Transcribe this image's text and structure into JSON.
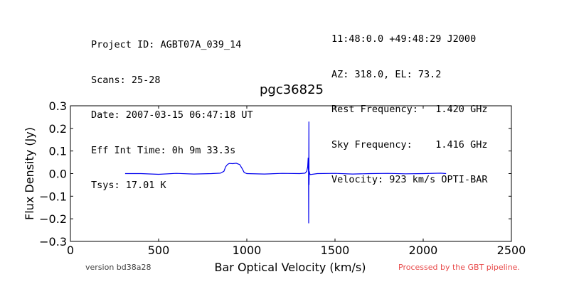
{
  "header": {
    "left": [
      "Project ID: AGBT07A_039_14",
      "Scans: 25-28",
      "Date: 2007-03-15 06:47:18 UT",
      "Eff Int Time: 0h 9m 33.3s",
      "Tsys: 17.01 K"
    ],
    "right": [
      "11:48:0.0 +49:48:29 J2000",
      "AZ: 318.0, EL: 73.2",
      "Rest Frequency:   1.420 GHz",
      "Sky Frequency:    1.416 GHz",
      "Velocity: 923 km/s OPTI-BAR"
    ]
  },
  "footer": {
    "version": "version bd38a28",
    "processed": "Processed by the GBT pipeline."
  },
  "colors": {
    "line": "#0000ee",
    "processed_text": "#e84a4a"
  },
  "chart_data": {
    "type": "line",
    "title": "pgc36825",
    "xlabel": "Bar Optical Velocity (km/s)",
    "ylabel": "Flux Density (Jy)",
    "xlim": [
      0,
      2500
    ],
    "ylim": [
      -0.3,
      0.3
    ],
    "xticks": [
      "0",
      "500",
      "1000",
      "1500",
      "2000",
      "2500"
    ],
    "yticks": [
      "0.3",
      "0.2",
      "0.1",
      "0.0",
      "−0.1",
      "−0.2",
      "−0.3"
    ],
    "grid": false,
    "series": [
      {
        "x": [
          310,
          400,
          500,
          600,
          700,
          800,
          850,
          870,
          880,
          890,
          900,
          920,
          940,
          960,
          975,
          985,
          1000,
          1100,
          1200,
          1300,
          1330,
          1340,
          1345,
          1348,
          1350,
          1351,
          1352,
          1353,
          1354,
          1356,
          1360,
          1400,
          1500,
          1600,
          1700,
          1800,
          1900,
          2000,
          2100,
          2130
        ],
        "y": [
          0.0,
          0.0,
          -0.003,
          0.001,
          -0.002,
          0.0,
          0.002,
          0.01,
          0.03,
          0.04,
          0.045,
          0.044,
          0.046,
          0.04,
          0.02,
          0.005,
          0.0,
          -0.002,
          0.001,
          0.0,
          0.002,
          0.01,
          0.03,
          0.07,
          0.0,
          -0.22,
          0.23,
          -0.05,
          0.01,
          0.0,
          -0.004,
          0.0,
          0.001,
          -0.002,
          0.0,
          0.001,
          -0.001,
          0.0,
          0.002,
          0.0
        ]
      }
    ]
  }
}
